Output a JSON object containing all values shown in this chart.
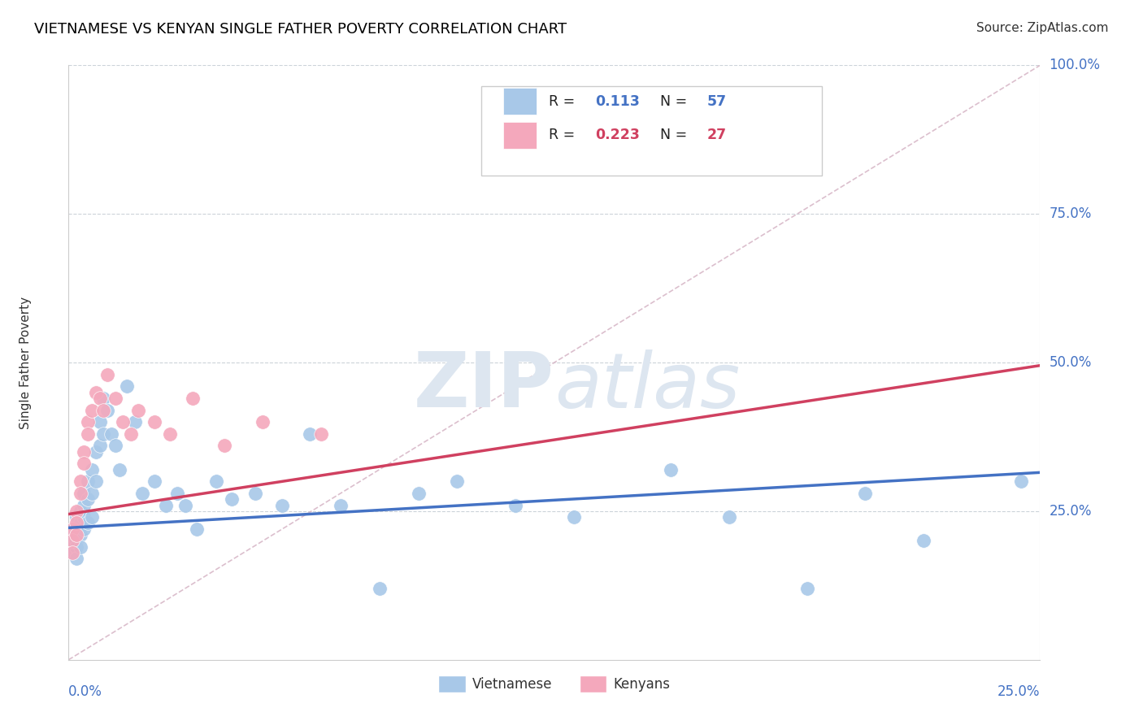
{
  "title": "VIETNAMESE VS KENYAN SINGLE FATHER POVERTY CORRELATION CHART",
  "source": "Source: ZipAtlas.com",
  "ylabel": "Single Father Poverty",
  "xlim": [
    0.0,
    0.25
  ],
  "ylim": [
    0.0,
    1.0
  ],
  "viet_R": 0.113,
  "viet_N": 57,
  "ken_R": 0.223,
  "ken_N": 27,
  "viet_color": "#a8c8e8",
  "ken_color": "#f4a8bc",
  "viet_trend_color": "#4472c4",
  "ken_trend_color": "#d04060",
  "diag_line_color": "#d8b8c8",
  "watermark_color": "#dde6f0",
  "viet_scatter_x": [
    0.001,
    0.001,
    0.001,
    0.002,
    0.002,
    0.002,
    0.002,
    0.002,
    0.003,
    0.003,
    0.003,
    0.003,
    0.004,
    0.004,
    0.004,
    0.004,
    0.005,
    0.005,
    0.005,
    0.006,
    0.006,
    0.006,
    0.007,
    0.007,
    0.008,
    0.008,
    0.009,
    0.009,
    0.01,
    0.011,
    0.012,
    0.013,
    0.015,
    0.017,
    0.019,
    0.022,
    0.025,
    0.028,
    0.03,
    0.033,
    0.038,
    0.042,
    0.048,
    0.055,
    0.062,
    0.07,
    0.08,
    0.09,
    0.1,
    0.115,
    0.13,
    0.155,
    0.17,
    0.19,
    0.205,
    0.22,
    0.245
  ],
  "viet_scatter_y": [
    0.22,
    0.2,
    0.18,
    0.24,
    0.22,
    0.2,
    0.19,
    0.17,
    0.25,
    0.23,
    0.21,
    0.19,
    0.28,
    0.26,
    0.24,
    0.22,
    0.3,
    0.27,
    0.23,
    0.32,
    0.28,
    0.24,
    0.35,
    0.3,
    0.4,
    0.36,
    0.44,
    0.38,
    0.42,
    0.38,
    0.36,
    0.32,
    0.46,
    0.4,
    0.28,
    0.3,
    0.26,
    0.28,
    0.26,
    0.22,
    0.3,
    0.27,
    0.28,
    0.26,
    0.38,
    0.26,
    0.12,
    0.28,
    0.3,
    0.26,
    0.24,
    0.32,
    0.24,
    0.12,
    0.28,
    0.2,
    0.3
  ],
  "ken_scatter_x": [
    0.001,
    0.001,
    0.001,
    0.002,
    0.002,
    0.002,
    0.003,
    0.003,
    0.004,
    0.004,
    0.005,
    0.005,
    0.006,
    0.007,
    0.008,
    0.009,
    0.01,
    0.012,
    0.014,
    0.016,
    0.018,
    0.022,
    0.026,
    0.032,
    0.04,
    0.05,
    0.065
  ],
  "ken_scatter_y": [
    0.22,
    0.2,
    0.18,
    0.25,
    0.23,
    0.21,
    0.3,
    0.28,
    0.35,
    0.33,
    0.4,
    0.38,
    0.42,
    0.45,
    0.44,
    0.42,
    0.48,
    0.44,
    0.4,
    0.38,
    0.42,
    0.4,
    0.38,
    0.44,
    0.36,
    0.4,
    0.38
  ],
  "viet_trend_y0": 0.222,
  "viet_trend_y1": 0.315,
  "ken_trend_y0": 0.245,
  "ken_trend_y1": 0.495,
  "diag_yticks": [
    0.25,
    0.5,
    0.75,
    1.0
  ],
  "right_labels": [
    "25.0%",
    "50.0%",
    "75.0%",
    "100.0%"
  ],
  "legend_viet_label": "Vietnamese",
  "legend_ken_label": "Kenyans"
}
